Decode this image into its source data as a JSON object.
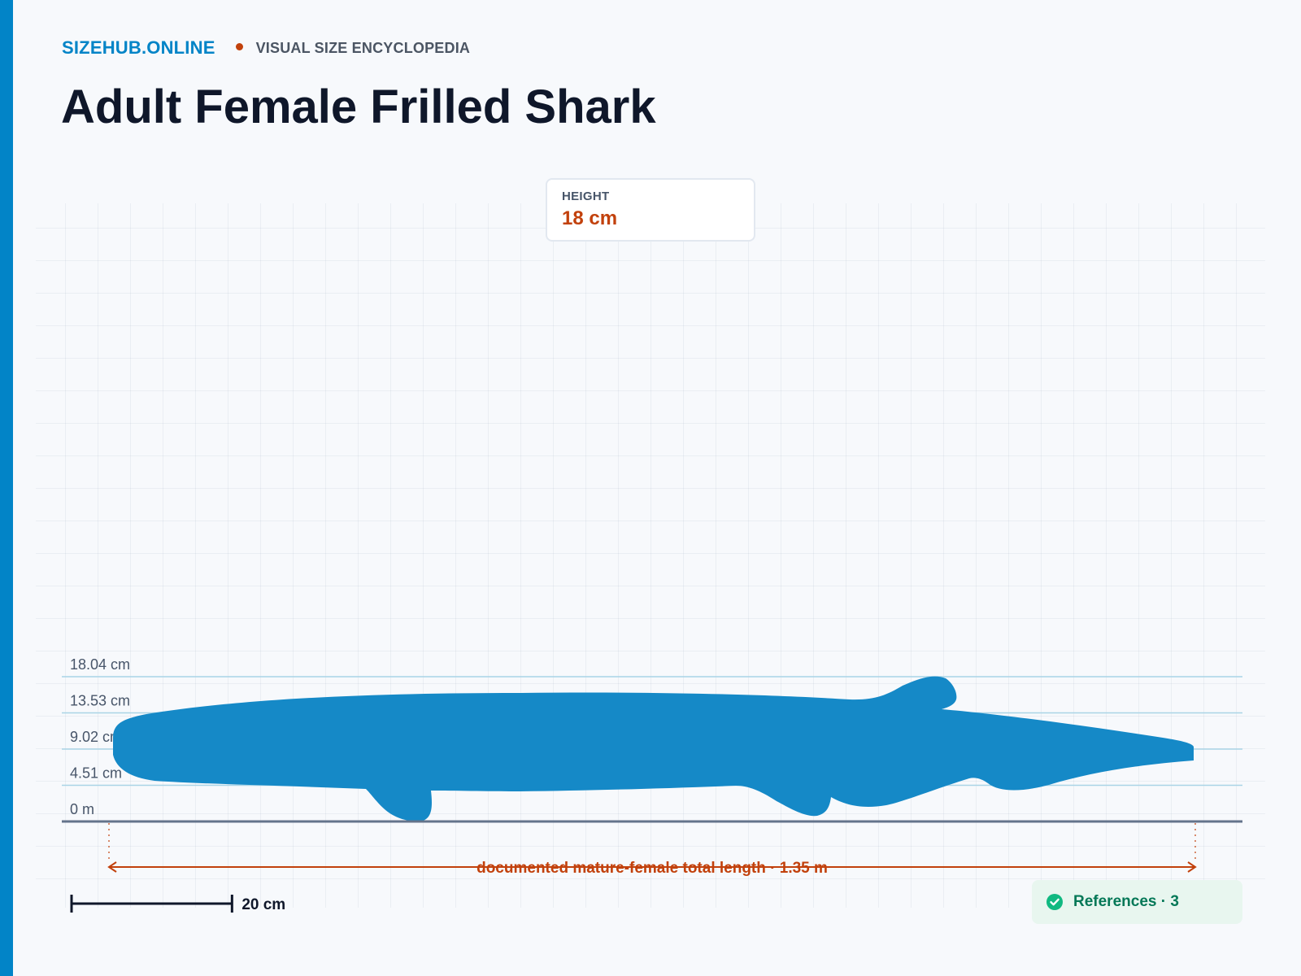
{
  "brand": {
    "name": "SIZEHUB.ONLINE",
    "tagline": "VISUAL SIZE ENCYCLOPEDIA"
  },
  "page": {
    "title": "Adult Female Frilled Shark"
  },
  "height_card": {
    "label": "HEIGHT",
    "value": "18 cm"
  },
  "chart_data": {
    "type": "size-comparison",
    "subject": "Adult Female Frilled Shark",
    "height_cm": 18.04,
    "length_m": 1.35,
    "y_ticks": [
      {
        "value_cm": 18.04,
        "label": "18.04 cm"
      },
      {
        "value_cm": 13.53,
        "label": "13.53 cm"
      },
      {
        "value_cm": 9.02,
        "label": "9.02 cm"
      },
      {
        "value_cm": 4.51,
        "label": "4.51 cm"
      },
      {
        "value_cm": 0,
        "label": "0 m"
      }
    ],
    "length_annotation": "documented mature-female total length · 1.35 m",
    "scale_bar": {
      "value_cm": 20,
      "label": "20 cm"
    },
    "colors": {
      "silhouette": "#1589c7",
      "annotation": "#c2410c",
      "ground": "#64748b",
      "gridline": "#a9d4e6"
    }
  },
  "references": {
    "label": "References · 3",
    "icon": "check-circle-icon",
    "color": "#10b981"
  }
}
